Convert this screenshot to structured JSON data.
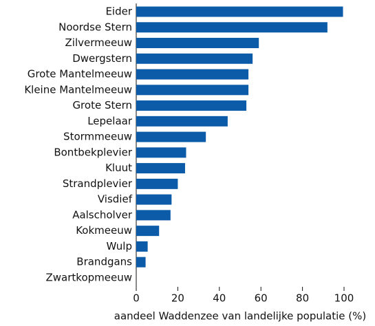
{
  "chart_data": {
    "type": "bar",
    "orientation": "horizontal",
    "x_label": "aandeel Waddenzee van landelijke populatie (%)",
    "categories": [
      "Eider",
      "Noordse Stern",
      "Zilvermeeuw",
      "Dwergstern",
      "Grote Mantelmeeuw",
      "Kleine Mantelmeeuw",
      "Grote Stern",
      "Lepelaar",
      "Stormmeeuw",
      "Bontbekplevier",
      "Kluut",
      "Strandplevier",
      "Visdief",
      "Aalscholver",
      "Kokmeeuw",
      "Wulp",
      "Brandgans",
      "Zwartkopmeeuw"
    ],
    "values": [
      99.5,
      92,
      59,
      56,
      54,
      54,
      53,
      44,
      33.5,
      24,
      23.5,
      20,
      17,
      16.5,
      11,
      5.5,
      4.5,
      0
    ],
    "color": "#0b5ba8",
    "xlim": [
      0,
      100
    ],
    "xticks": [
      0,
      20,
      40,
      60,
      80,
      100
    ],
    "grid": false
  }
}
